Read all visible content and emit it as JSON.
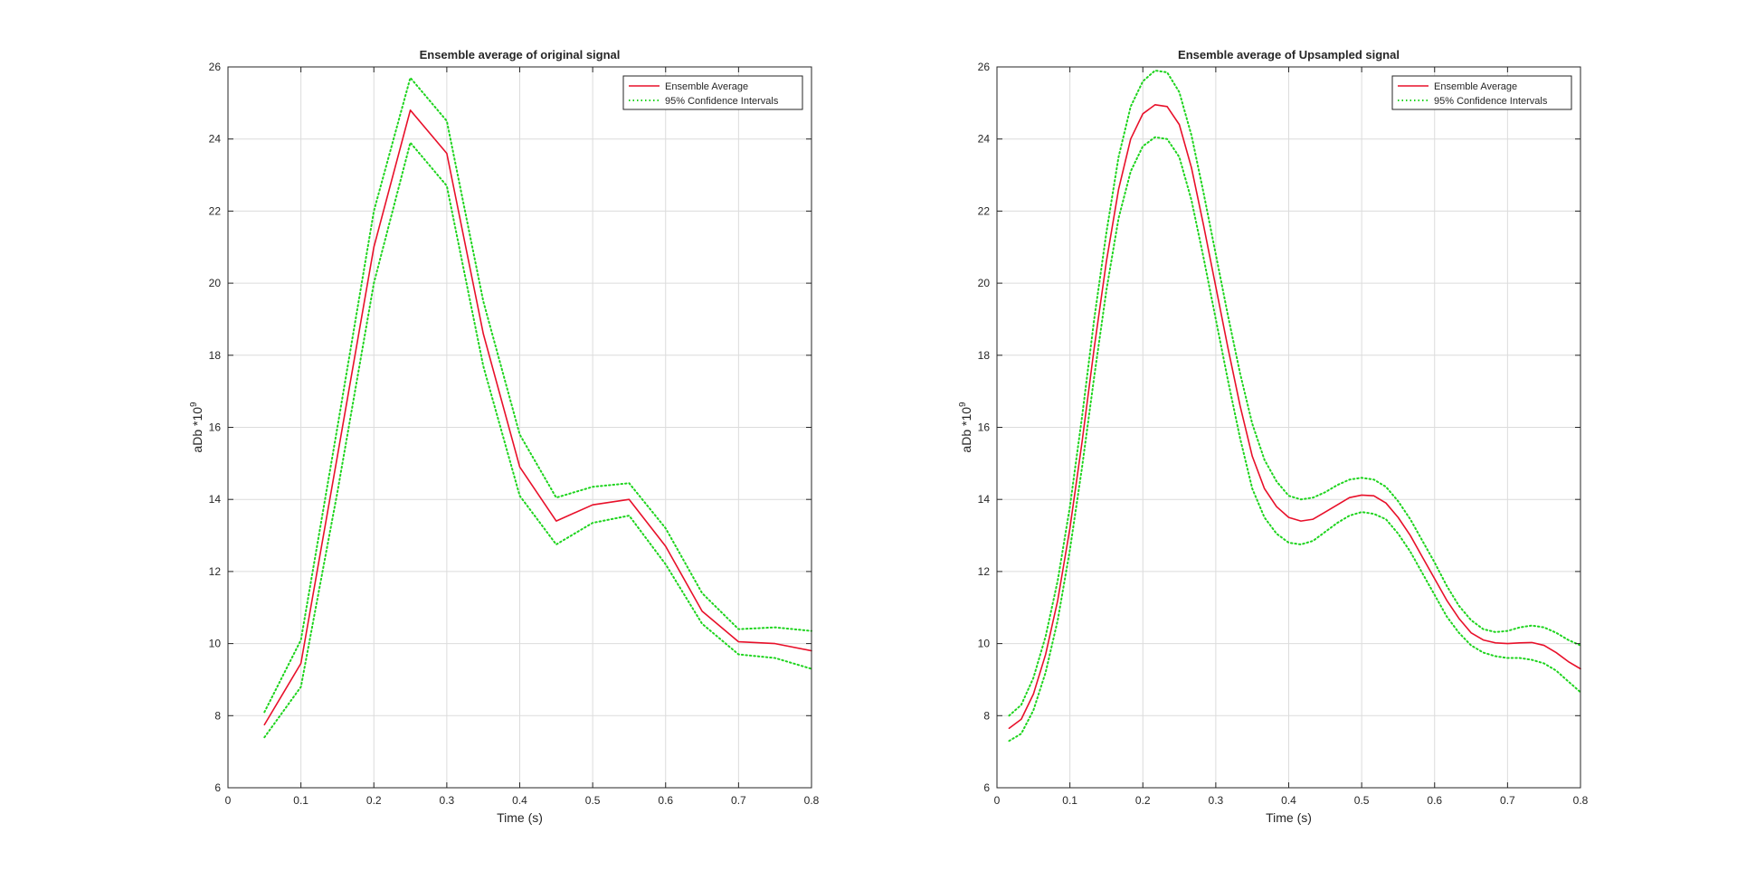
{
  "colors": {
    "average": "#e8102a",
    "confidence": "#1ed41e",
    "axes": "#262626",
    "grid": "#dcdcdc"
  },
  "chart_data": [
    {
      "type": "line",
      "title": "Ensemble average of original signal",
      "xlabel": "Time (s)",
      "ylabel_base": "aDb *10",
      "ylabel_exponent": "9",
      "xlim": [
        0,
        0.8
      ],
      "ylim": [
        6,
        26
      ],
      "xticks": [
        0,
        0.1,
        0.2,
        0.3,
        0.4,
        0.5,
        0.6,
        0.7,
        0.8
      ],
      "xtick_labels": [
        "0",
        "0.1",
        "0.2",
        "0.3",
        "0.4",
        "0.5",
        "0.6",
        "0.7",
        "0.8"
      ],
      "yticks": [
        6,
        8,
        10,
        12,
        14,
        16,
        18,
        20,
        22,
        24,
        26
      ],
      "ytick_labels": [
        "6",
        "8",
        "10",
        "12",
        "14",
        "16",
        "18",
        "20",
        "22",
        "24",
        "26"
      ],
      "grid": true,
      "legend_position": "top-right",
      "series": [
        {
          "name": "Ensemble Average",
          "style": "solid",
          "color": "#e8102a",
          "x": [
            0.05,
            0.1,
            0.15,
            0.2,
            0.25,
            0.3,
            0.35,
            0.4,
            0.45,
            0.5,
            0.55,
            0.6,
            0.65,
            0.7,
            0.75,
            0.8
          ],
          "y": [
            7.75,
            9.45,
            15.2,
            21.0,
            24.8,
            23.6,
            18.6,
            14.9,
            13.4,
            13.85,
            14.0,
            12.7,
            10.9,
            10.05,
            10.0,
            9.8
          ]
        },
        {
          "name": "95% Confidence Intervals",
          "style": "dotted",
          "color": "#1ed41e",
          "x": [
            0.05,
            0.1,
            0.15,
            0.2,
            0.25,
            0.3,
            0.35,
            0.4,
            0.45,
            0.5,
            0.55,
            0.6,
            0.65,
            0.7,
            0.75,
            0.8
          ],
          "y": [
            8.1,
            10.1,
            16.0,
            22.0,
            25.7,
            24.5,
            19.5,
            15.8,
            14.05,
            14.35,
            14.45,
            13.2,
            11.4,
            10.4,
            10.45,
            10.35
          ]
        },
        {
          "style": "dotted",
          "color": "#1ed41e",
          "x": [
            0.05,
            0.1,
            0.15,
            0.2,
            0.25,
            0.3,
            0.35,
            0.4,
            0.45,
            0.5,
            0.55,
            0.6,
            0.65,
            0.7,
            0.75,
            0.8
          ],
          "y": [
            7.4,
            8.8,
            14.2,
            20.0,
            23.9,
            22.7,
            17.7,
            14.1,
            12.75,
            13.35,
            13.55,
            12.2,
            10.55,
            9.7,
            9.6,
            9.3
          ]
        }
      ]
    },
    {
      "type": "line",
      "title": "Ensemble average of Upsampled signal",
      "xlabel": "Time (s)",
      "ylabel_base": "aDb *10",
      "ylabel_exponent": "9",
      "xlim": [
        0,
        0.8
      ],
      "ylim": [
        6,
        26
      ],
      "xticks": [
        0,
        0.1,
        0.2,
        0.3,
        0.4,
        0.5,
        0.6,
        0.7,
        0.8
      ],
      "xtick_labels": [
        "0",
        "0.1",
        "0.2",
        "0.3",
        "0.4",
        "0.5",
        "0.6",
        "0.7",
        "0.8"
      ],
      "yticks": [
        6,
        8,
        10,
        12,
        14,
        16,
        18,
        20,
        22,
        24,
        26
      ],
      "ytick_labels": [
        "6",
        "8",
        "10",
        "12",
        "14",
        "16",
        "18",
        "20",
        "22",
        "24",
        "26"
      ],
      "grid": true,
      "legend_position": "top-right",
      "series": [
        {
          "name": "Ensemble Average",
          "style": "solid",
          "color": "#e8102a",
          "x": [
            0.0167,
            0.0333,
            0.05,
            0.0667,
            0.0833,
            0.1,
            0.1167,
            0.1333,
            0.15,
            0.1667,
            0.1833,
            0.2,
            0.2167,
            0.2333,
            0.25,
            0.2667,
            0.2833,
            0.3,
            0.3167,
            0.3333,
            0.35,
            0.3667,
            0.3833,
            0.4,
            0.4167,
            0.4333,
            0.45,
            0.4667,
            0.4833,
            0.5,
            0.5167,
            0.5333,
            0.55,
            0.5667,
            0.5833,
            0.6,
            0.6167,
            0.6333,
            0.65,
            0.6667,
            0.6833,
            0.7,
            0.7167,
            0.7333,
            0.75,
            0.7667,
            0.7833,
            0.8
          ],
          "y": [
            7.65,
            7.9,
            8.6,
            9.7,
            11.2,
            13.2,
            15.6,
            18.2,
            20.6,
            22.6,
            24.0,
            24.7,
            24.95,
            24.9,
            24.4,
            23.2,
            21.6,
            19.9,
            18.2,
            16.6,
            15.2,
            14.3,
            13.8,
            13.5,
            13.4,
            13.45,
            13.65,
            13.85,
            14.05,
            14.12,
            14.1,
            13.9,
            13.5,
            13.0,
            12.4,
            11.8,
            11.2,
            10.7,
            10.3,
            10.1,
            10.02,
            10.0,
            10.02,
            10.03,
            9.95,
            9.75,
            9.5,
            9.3
          ]
        },
        {
          "name": "95% Confidence Intervals",
          "style": "dotted",
          "color": "#1ed41e",
          "x": [
            0.0167,
            0.0333,
            0.05,
            0.0667,
            0.0833,
            0.1,
            0.1167,
            0.1333,
            0.15,
            0.1667,
            0.1833,
            0.2,
            0.2167,
            0.2333,
            0.25,
            0.2667,
            0.2833,
            0.3,
            0.3167,
            0.3333,
            0.35,
            0.3667,
            0.3833,
            0.4,
            0.4167,
            0.4333,
            0.45,
            0.4667,
            0.4833,
            0.5,
            0.5167,
            0.5333,
            0.55,
            0.5667,
            0.5833,
            0.6,
            0.6167,
            0.6333,
            0.65,
            0.6667,
            0.6833,
            0.7,
            0.7167,
            0.7333,
            0.75,
            0.7667,
            0.7833,
            0.8
          ],
          "y": [
            8.0,
            8.3,
            9.05,
            10.2,
            11.75,
            13.8,
            16.3,
            19.0,
            21.4,
            23.5,
            24.9,
            25.6,
            25.9,
            25.85,
            25.3,
            24.1,
            22.5,
            20.8,
            19.1,
            17.5,
            16.1,
            15.1,
            14.5,
            14.1,
            14.0,
            14.05,
            14.2,
            14.4,
            14.55,
            14.6,
            14.55,
            14.35,
            13.95,
            13.45,
            12.85,
            12.25,
            11.6,
            11.05,
            10.65,
            10.4,
            10.32,
            10.35,
            10.45,
            10.5,
            10.45,
            10.3,
            10.1,
            9.95
          ]
        },
        {
          "style": "dotted",
          "color": "#1ed41e",
          "x": [
            0.0167,
            0.0333,
            0.05,
            0.0667,
            0.0833,
            0.1,
            0.1167,
            0.1333,
            0.15,
            0.1667,
            0.1833,
            0.2,
            0.2167,
            0.2333,
            0.25,
            0.2667,
            0.2833,
            0.3,
            0.3167,
            0.3333,
            0.35,
            0.3667,
            0.3833,
            0.4,
            0.4167,
            0.4333,
            0.45,
            0.4667,
            0.4833,
            0.5,
            0.5167,
            0.5333,
            0.55,
            0.5667,
            0.5833,
            0.6,
            0.6167,
            0.6333,
            0.65,
            0.6667,
            0.6833,
            0.7,
            0.7167,
            0.7333,
            0.75,
            0.7667,
            0.7833,
            0.8
          ],
          "y": [
            7.3,
            7.5,
            8.15,
            9.2,
            10.65,
            12.6,
            14.9,
            17.4,
            19.8,
            21.8,
            23.1,
            23.8,
            24.05,
            24.0,
            23.5,
            22.3,
            20.7,
            19.0,
            17.3,
            15.7,
            14.3,
            13.5,
            13.05,
            12.8,
            12.75,
            12.85,
            13.1,
            13.35,
            13.55,
            13.65,
            13.6,
            13.45,
            13.05,
            12.55,
            11.95,
            11.35,
            10.75,
            10.3,
            9.95,
            9.75,
            9.65,
            9.6,
            9.6,
            9.55,
            9.45,
            9.25,
            8.95,
            8.65
          ]
        }
      ]
    }
  ]
}
